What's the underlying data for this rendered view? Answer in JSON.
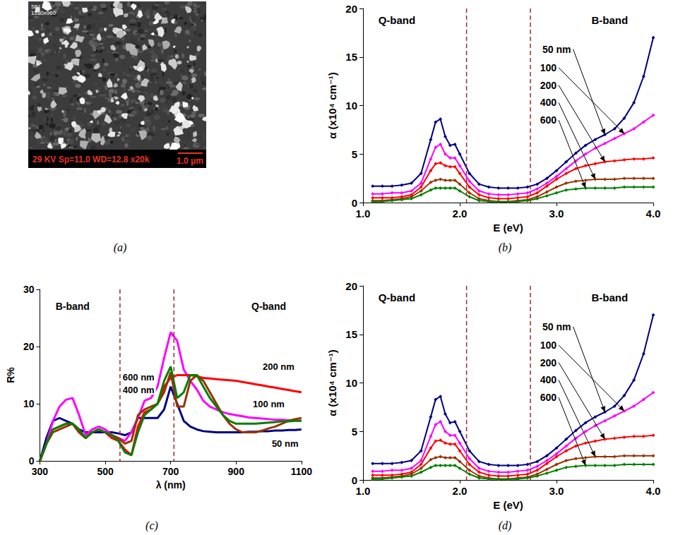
{
  "image_panel": {
    "caption": "(a)",
    "overlay": [
      "SEI",
      "1280x960"
    ],
    "info_bar": "29 KV Sp=11.0 WD=12.8 x20k",
    "scale_bar": "1.0 μm"
  },
  "chart_data": [
    {
      "caption": "(b)",
      "type": "line",
      "marker": "diamond",
      "line_style": "solid",
      "grid": false,
      "data_labels": false,
      "xlabel": "E (eV)",
      "ylabel": "α (x10⁴ cm⁻¹)",
      "xlim": [
        1,
        4
      ],
      "xticks": [
        {
          "value": 1,
          "label": "1.0"
        },
        {
          "value": 2,
          "label": "2.0"
        },
        {
          "value": 3,
          "label": "3.0"
        },
        {
          "value": 4,
          "label": "4.0"
        }
      ],
      "ylim": [
        0,
        20
      ],
      "yticks": [
        0,
        5,
        10,
        15,
        20
      ],
      "vlines": [
        2.07,
        2.73
      ],
      "annotations": [
        {
          "text": "Q-band",
          "x": 1.35,
          "y": 18.8
        },
        {
          "text": "B-band",
          "x": 3.55,
          "y": 18.8
        }
      ],
      "x": [
        1.1,
        1.2,
        1.3,
        1.4,
        1.5,
        1.6,
        1.7,
        1.75,
        1.8,
        1.85,
        1.9,
        1.95,
        2.0,
        2.1,
        2.2,
        2.3,
        2.4,
        2.5,
        2.6,
        2.7,
        2.8,
        2.9,
        3.0,
        3.1,
        3.2,
        3.3,
        3.4,
        3.5,
        3.6,
        3.7,
        3.8,
        3.9,
        4.0
      ],
      "series": [
        {
          "name": "50 nm",
          "color": "#000080",
          "values": [
            1.7,
            1.7,
            1.7,
            1.8,
            2.0,
            3.0,
            6.5,
            8.3,
            8.6,
            6.8,
            5.9,
            6.0,
            5.0,
            3.0,
            1.9,
            1.6,
            1.5,
            1.5,
            1.5,
            1.6,
            1.9,
            2.5,
            3.3,
            4.2,
            5.1,
            5.9,
            6.5,
            7.0,
            7.6,
            8.7,
            10.3,
            13.0,
            17.0
          ],
          "annotation": {
            "xytext": [
              3.15,
              15.8
            ],
            "xy": [
              3.5,
              7.0
            ]
          }
        },
        {
          "name": "100",
          "color": "#ff00ff",
          "values": [
            0.9,
            0.9,
            1.0,
            1.0,
            1.2,
            2.0,
            4.5,
            5.7,
            6.0,
            5.0,
            4.6,
            4.6,
            3.8,
            2.2,
            1.2,
            0.9,
            0.8,
            0.8,
            0.9,
            1.0,
            1.4,
            2.0,
            2.7,
            3.5,
            4.3,
            5.0,
            5.6,
            6.1,
            6.6,
            7.1,
            7.6,
            8.3,
            9.0
          ],
          "annotation": {
            "xytext": [
              3.0,
              13.9
            ],
            "xy": [
              3.7,
              7.1
            ]
          }
        },
        {
          "name": "200",
          "color": "#ff0000",
          "values": [
            0.5,
            0.5,
            0.5,
            0.6,
            0.8,
            1.6,
            3.3,
            4.0,
            4.1,
            3.8,
            3.7,
            3.7,
            3.0,
            1.6,
            0.8,
            0.5,
            0.4,
            0.4,
            0.5,
            0.6,
            1.0,
            1.7,
            2.4,
            3.0,
            3.5,
            3.8,
            4.0,
            4.2,
            4.3,
            4.4,
            4.5,
            4.5,
            4.6
          ],
          "annotation": {
            "xytext": [
              3.0,
              12.1
            ],
            "xy": [
              3.5,
              4.2
            ]
          }
        },
        {
          "name": "400",
          "color": "#993300",
          "values": [
            0.2,
            0.2,
            0.3,
            0.4,
            0.6,
            1.2,
            2.1,
            2.3,
            2.4,
            2.3,
            2.3,
            2.3,
            1.9,
            1.0,
            0.4,
            0.2,
            0.1,
            0.1,
            0.2,
            0.3,
            0.6,
            1.1,
            1.6,
            2.0,
            2.2,
            2.3,
            2.4,
            2.4,
            2.4,
            2.5,
            2.5,
            2.5,
            2.5
          ],
          "annotation": {
            "xytext": [
              3.0,
              10.3
            ],
            "xy": [
              3.4,
              2.4
            ]
          }
        },
        {
          "name": "600",
          "color": "#008000",
          "values": [
            0.1,
            0.1,
            0.2,
            0.3,
            0.4,
            0.8,
            1.3,
            1.5,
            1.5,
            1.5,
            1.5,
            1.5,
            1.2,
            0.6,
            0.2,
            0.1,
            0.1,
            0.1,
            0.1,
            0.2,
            0.4,
            0.7,
            1.0,
            1.3,
            1.4,
            1.5,
            1.5,
            1.5,
            1.5,
            1.6,
            1.6,
            1.6,
            1.6
          ],
          "annotation": {
            "xytext": [
              3.0,
              8.5
            ],
            "xy": [
              3.3,
              1.5
            ]
          }
        }
      ]
    },
    {
      "caption": "(c)",
      "type": "line",
      "marker": "none",
      "line_style": "solid",
      "grid": false,
      "data_labels": false,
      "xlabel": "λ (nm)",
      "ylabel": "R%",
      "xlim": [
        300,
        1100
      ],
      "xticks": [
        300,
        500,
        700,
        900,
        1100
      ],
      "ylim": [
        0,
        30
      ],
      "yticks": [
        0,
        10,
        20,
        30
      ],
      "vlines": [
        545,
        710
      ],
      "annotations": [
        {
          "text": "B-band",
          "x": 400,
          "y": 27
        },
        {
          "text": "Q-band",
          "x": 1000,
          "y": 27
        }
      ],
      "x": [
        300,
        320,
        340,
        360,
        380,
        400,
        420,
        440,
        460,
        480,
        500,
        520,
        540,
        560,
        580,
        600,
        620,
        640,
        660,
        680,
        700,
        720,
        740,
        760,
        780,
        800,
        820,
        840,
        860,
        880,
        900,
        920,
        940,
        960,
        980,
        1000,
        1020,
        1040,
        1060,
        1080,
        1100
      ],
      "series": [
        {
          "name": "50 nm",
          "color": "#000080",
          "values": [
            0,
            4,
            7,
            7.5,
            7,
            6.5,
            5.5,
            5,
            5,
            5,
            5,
            5,
            4.8,
            4.5,
            5,
            7.5,
            7.5,
            7.5,
            7.5,
            9,
            13,
            10,
            7,
            6,
            5.5,
            5.2,
            5.1,
            5,
            5,
            5,
            5,
            5,
            5.1,
            5.1,
            5.2,
            5.2,
            5.3,
            5.3,
            5.4,
            5.4,
            5.5
          ],
          "annotation": {
            "xytext": [
              1050,
              3
            ]
          }
        },
        {
          "name": "100 nm",
          "color": "#ff00ff",
          "values": [
            0,
            3,
            7,
            9.5,
            10.7,
            11,
            8,
            4.5,
            5.5,
            6,
            5.5,
            4.5,
            4,
            3.5,
            5,
            7.5,
            10.5,
            11,
            13,
            18,
            22.5,
            21,
            16,
            14,
            12.5,
            10.5,
            9.5,
            9,
            8.5,
            8.2,
            8,
            7.8,
            7.6,
            7.5,
            7.4,
            7.3,
            7.2,
            7.2,
            7.1,
            7.1,
            7
          ],
          "annotation": {
            "xytext": [
              1000,
              10
            ]
          }
        },
        {
          "name": "200 nm",
          "color": "#ff0000",
          "values": [
            0,
            3,
            5.5,
            6,
            6.5,
            6.5,
            5,
            4,
            5,
            5.5,
            5,
            4,
            3.5,
            2,
            1,
            6,
            8.5,
            9,
            10,
            13,
            14.5,
            15,
            15,
            15,
            14.8,
            14.5,
            14.4,
            14.3,
            14.2,
            14.1,
            14,
            13.8,
            13.6,
            13.4,
            13.2,
            13,
            12.8,
            12.6,
            12.4,
            12.2,
            12
          ],
          "annotation": {
            "xytext": [
              1030,
              16.5
            ]
          }
        },
        {
          "name": "400 nm",
          "color": "#993300",
          "values": [
            0,
            3,
            5,
            5.5,
            6,
            6.5,
            5,
            4,
            5,
            5.5,
            5,
            4.5,
            4,
            3,
            3.5,
            8,
            9,
            9.5,
            10,
            12,
            15.5,
            9.5,
            9.5,
            14,
            15,
            14,
            12,
            10,
            8,
            6.5,
            5.5,
            5,
            5,
            5,
            5.3,
            5.7,
            6,
            6.5,
            7,
            7.3,
            7.5
          ],
          "annotation": {
            "xytext": [
              602,
              12.4
            ]
          }
        },
        {
          "name": "600 nm",
          "color": "#008000",
          "values": [
            0,
            3,
            5.5,
            6,
            6.5,
            6.5,
            5.5,
            4,
            5,
            5.5,
            5,
            4.5,
            3.5,
            1.5,
            1,
            5,
            8,
            9,
            10,
            14,
            16.5,
            11,
            12,
            15,
            15,
            13,
            11,
            9.5,
            8,
            7,
            6.5,
            6.5,
            6.5,
            6.5,
            6.6,
            6.7,
            6.8,
            6.9,
            6.9,
            7,
            7
          ],
          "annotation": {
            "xytext": [
              602,
              14.6
            ]
          }
        }
      ]
    },
    {
      "caption": "(d)",
      "type": "line",
      "marker": "diamond",
      "line_style": "solid",
      "grid": false,
      "data_labels": false,
      "xlabel": "E (eV)",
      "ylabel": "α (x10⁴ cm⁻¹)",
      "xlim": [
        1,
        4
      ],
      "xticks": [
        {
          "value": 1,
          "label": "1.0"
        },
        {
          "value": 2,
          "label": "2.0"
        },
        {
          "value": 3,
          "label": "3.0"
        },
        {
          "value": 4,
          "label": "4.0"
        }
      ],
      "ylim": [
        0,
        20
      ],
      "yticks": [
        0,
        5,
        10,
        15,
        20
      ],
      "vlines": [
        2.07,
        2.73
      ],
      "annotations": [
        {
          "text": "Q-band",
          "x": 1.35,
          "y": 18.8
        },
        {
          "text": "B-band",
          "x": 3.55,
          "y": 18.8
        }
      ],
      "x": [
        1.1,
        1.2,
        1.3,
        1.4,
        1.5,
        1.6,
        1.7,
        1.75,
        1.8,
        1.85,
        1.9,
        1.95,
        2.0,
        2.1,
        2.2,
        2.3,
        2.4,
        2.5,
        2.6,
        2.7,
        2.8,
        2.9,
        3.0,
        3.1,
        3.2,
        3.3,
        3.4,
        3.5,
        3.6,
        3.7,
        3.8,
        3.9,
        4.0
      ],
      "series": [
        {
          "name": "50 nm",
          "color": "#000080",
          "values": [
            1.7,
            1.7,
            1.7,
            1.8,
            2.0,
            3.0,
            6.5,
            8.3,
            8.6,
            6.8,
            5.9,
            6.0,
            5.0,
            3.0,
            1.9,
            1.6,
            1.5,
            1.5,
            1.5,
            1.6,
            1.9,
            2.5,
            3.3,
            4.2,
            5.1,
            5.9,
            6.5,
            7.0,
            7.6,
            8.7,
            10.3,
            13.0,
            17.0
          ],
          "annotation": {
            "xytext": [
              3.15,
              15.8
            ],
            "xy": [
              3.5,
              7.0
            ]
          }
        },
        {
          "name": "100",
          "color": "#ff00ff",
          "values": [
            0.9,
            0.9,
            1.0,
            1.0,
            1.2,
            2.0,
            4.5,
            5.7,
            6.0,
            5.0,
            4.6,
            4.6,
            3.8,
            2.2,
            1.2,
            0.9,
            0.8,
            0.8,
            0.9,
            1.0,
            1.4,
            2.0,
            2.7,
            3.5,
            4.3,
            5.0,
            5.6,
            6.1,
            6.6,
            7.1,
            7.6,
            8.3,
            9.0
          ],
          "annotation": {
            "xytext": [
              3.0,
              13.9
            ],
            "xy": [
              3.7,
              7.1
            ]
          }
        },
        {
          "name": "200",
          "color": "#ff0000",
          "values": [
            0.5,
            0.5,
            0.5,
            0.6,
            0.8,
            1.6,
            3.3,
            4.0,
            4.1,
            3.8,
            3.7,
            3.7,
            3.0,
            1.6,
            0.8,
            0.5,
            0.4,
            0.4,
            0.5,
            0.6,
            1.0,
            1.7,
            2.4,
            3.0,
            3.5,
            3.8,
            4.0,
            4.2,
            4.3,
            4.4,
            4.5,
            4.5,
            4.6
          ],
          "annotation": {
            "xytext": [
              3.0,
              12.1
            ],
            "xy": [
              3.5,
              4.2
            ]
          }
        },
        {
          "name": "400",
          "color": "#993300",
          "values": [
            0.2,
            0.2,
            0.3,
            0.4,
            0.6,
            1.2,
            2.1,
            2.3,
            2.4,
            2.3,
            2.3,
            2.3,
            1.9,
            1.0,
            0.4,
            0.2,
            0.1,
            0.1,
            0.2,
            0.3,
            0.6,
            1.1,
            1.6,
            2.0,
            2.2,
            2.3,
            2.4,
            2.4,
            2.4,
            2.5,
            2.5,
            2.5,
            2.5
          ],
          "annotation": {
            "xytext": [
              3.0,
              10.3
            ],
            "xy": [
              3.4,
              2.4
            ]
          }
        },
        {
          "name": "600",
          "color": "#008000",
          "values": [
            0.1,
            0.1,
            0.2,
            0.3,
            0.4,
            0.8,
            1.3,
            1.5,
            1.5,
            1.5,
            1.5,
            1.5,
            1.2,
            0.6,
            0.2,
            0.1,
            0.1,
            0.1,
            0.1,
            0.2,
            0.4,
            0.7,
            1.0,
            1.3,
            1.4,
            1.5,
            1.5,
            1.5,
            1.5,
            1.6,
            1.6,
            1.6,
            1.6
          ],
          "annotation": {
            "xytext": [
              3.0,
              8.5
            ],
            "xy": [
              3.3,
              1.5
            ]
          }
        }
      ]
    }
  ]
}
